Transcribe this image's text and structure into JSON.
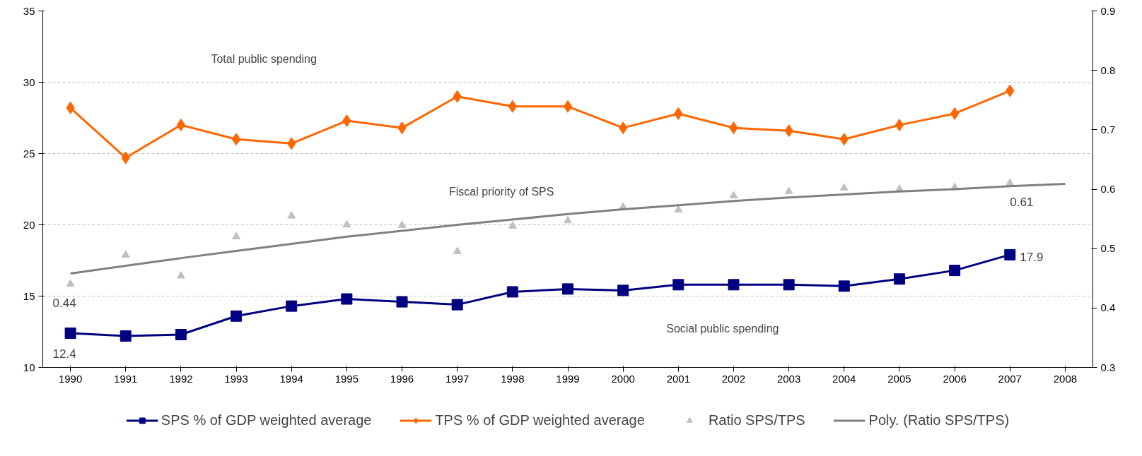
{
  "chart_data": {
    "type": "line",
    "categories": [
      "1990",
      "1991",
      "1992",
      "1993",
      "1994",
      "1995",
      "1996",
      "1997",
      "1998",
      "1999",
      "2000",
      "2001",
      "2002",
      "2003",
      "2004",
      "2005",
      "2006",
      "2007",
      "2008"
    ],
    "series": [
      {
        "name": "SPS % of GDP weighted average",
        "color": "#000080",
        "marker": "square",
        "values": [
          12.4,
          12.2,
          12.3,
          13.6,
          14.3,
          14.8,
          14.6,
          14.4,
          15.3,
          15.5,
          15.4,
          15.8,
          15.8,
          15.8,
          15.7,
          16.2,
          16.8,
          17.9,
          null
        ],
        "value_labels": [
          "12.4",
          null,
          null,
          null,
          null,
          null,
          null,
          null,
          null,
          null,
          null,
          null,
          null,
          null,
          null,
          null,
          null,
          "17.9",
          null
        ]
      },
      {
        "name": "TPS % of GDP weighted average",
        "color": "#ff6600",
        "marker": "diamond",
        "values": [
          28.2,
          24.7,
          27.0,
          26.0,
          25.7,
          27.3,
          26.8,
          29.0,
          28.3,
          28.3,
          26.8,
          27.8,
          26.8,
          26.6,
          26.0,
          27.0,
          27.8,
          29.4,
          null
        ]
      },
      {
        "name": "Ratio SPS/TPS",
        "type": "scatter",
        "axis": "y2",
        "color": "#c0c0c0",
        "marker": "triangle",
        "values": [
          0.44,
          0.489,
          0.454,
          0.52,
          0.555,
          0.54,
          0.539,
          0.495,
          0.538,
          0.547,
          0.57,
          0.565,
          0.589,
          0.596,
          0.602,
          0.6,
          0.603,
          0.61,
          null
        ],
        "value_labels": [
          "0.44",
          null,
          null,
          null,
          null,
          null,
          null,
          null,
          null,
          null,
          null,
          null,
          null,
          null,
          null,
          null,
          null,
          "0.61",
          null
        ]
      },
      {
        "name": "Poly. (Ratio SPS/TPS)",
        "type": "line",
        "axis": "y2",
        "color": "#808080",
        "marker": "none",
        "values": [
          0.458,
          0.471,
          0.484,
          0.496,
          0.508,
          0.52,
          0.53,
          0.54,
          0.549,
          0.558,
          0.566,
          0.573,
          0.58,
          0.586,
          0.591,
          0.596,
          0.6,
          0.605,
          0.609
        ]
      }
    ],
    "annotations": [
      "Total public spending",
      "Fiscal priority of SPS",
      "Social public spending"
    ],
    "ylim": [
      10,
      35
    ],
    "yticks": [
      10,
      15,
      20,
      25,
      30,
      35
    ],
    "y2lim": [
      0.3,
      0.9
    ],
    "y2ticks": [
      0.3,
      0.4,
      0.5,
      0.6,
      0.7,
      0.8,
      0.9
    ],
    "grid": "y",
    "legend": "bottom",
    "line_style": "solid"
  }
}
